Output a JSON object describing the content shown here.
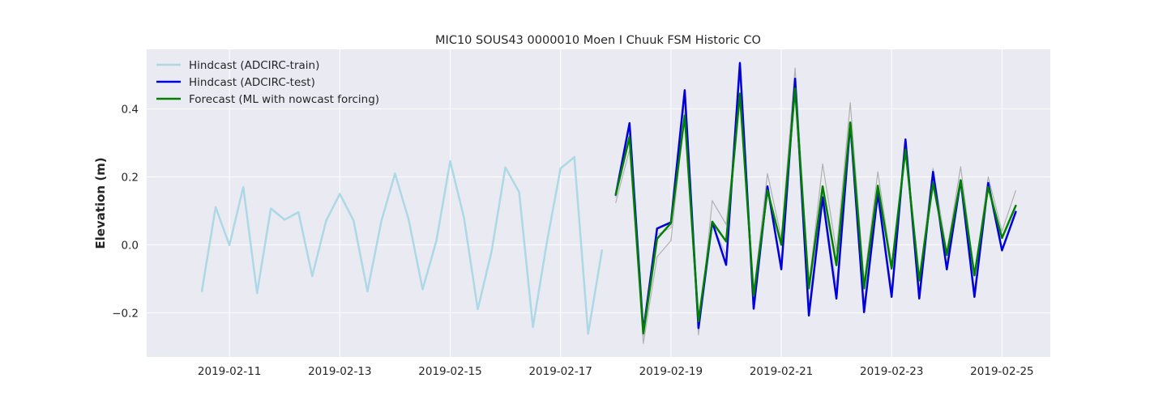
{
  "chart_data": {
    "type": "line",
    "title": "MIC10 SOUS43 0000010 Moen I Chuuk FSM Historic CO",
    "xlabel": "",
    "ylabel": "Elevation (m)",
    "x_ticks": [
      "2019-02-11",
      "2019-02-13",
      "2019-02-15",
      "2019-02-17",
      "2019-02-19",
      "2019-02-21",
      "2019-02-23",
      "2019-02-25"
    ],
    "y_ticks": [
      "−0.2",
      "0.0",
      "0.2",
      "0.4"
    ],
    "y_tick_values": [
      -0.2,
      0.0,
      0.2,
      0.4
    ],
    "xlim": [
      "2019-02-09 12:00",
      "2019-02-25 21:00"
    ],
    "ylim": [
      -0.33,
      0.575
    ],
    "grid": true,
    "legend_position": "upper left",
    "background": "#eaeaf2",
    "series": [
      {
        "name": "Hindcast (ADCIRC-train)",
        "color": "#add8e6",
        "width": 2.5,
        "x": [
          "2019-02-10 12:00",
          "2019-02-10 18:00",
          "2019-02-11 00:00",
          "2019-02-11 06:00",
          "2019-02-11 12:00",
          "2019-02-11 18:00",
          "2019-02-12 00:00",
          "2019-02-12 06:00",
          "2019-02-12 12:00",
          "2019-02-12 18:00",
          "2019-02-13 00:00",
          "2019-02-13 06:00",
          "2019-02-13 12:00",
          "2019-02-13 18:00",
          "2019-02-14 00:00",
          "2019-02-14 06:00",
          "2019-02-14 12:00",
          "2019-02-14 18:00",
          "2019-02-15 00:00",
          "2019-02-15 06:00",
          "2019-02-15 12:00",
          "2019-02-15 18:00",
          "2019-02-16 00:00",
          "2019-02-16 06:00",
          "2019-02-16 12:00",
          "2019-02-16 18:00",
          "2019-02-17 00:00",
          "2019-02-17 06:00",
          "2019-02-17 12:00",
          "2019-02-17 18:00"
        ],
        "y": [
          -0.136,
          0.111,
          -0.001,
          0.17,
          -0.142,
          0.107,
          0.074,
          0.096,
          -0.092,
          0.07,
          0.15,
          0.071,
          -0.137,
          0.068,
          0.21,
          0.073,
          -0.131,
          0.012,
          0.246,
          0.08,
          -0.19,
          -0.019,
          0.228,
          0.155,
          -0.242,
          0.006,
          0.225,
          0.258,
          -0.262,
          -0.016
        ]
      },
      {
        "name": "Hindcast (ADCIRC-test)",
        "color": "#0000dd",
        "width": 2.5,
        "x": [
          "2019-02-18 00:00",
          "2019-02-18 06:00",
          "2019-02-18 12:00",
          "2019-02-18 18:00",
          "2019-02-19 00:00",
          "2019-02-19 06:00",
          "2019-02-19 12:00",
          "2019-02-19 18:00",
          "2019-02-20 00:00",
          "2019-02-20 06:00",
          "2019-02-20 12:00",
          "2019-02-20 18:00",
          "2019-02-21 00:00",
          "2019-02-21 06:00",
          "2019-02-21 12:00",
          "2019-02-21 18:00",
          "2019-02-22 00:00",
          "2019-02-22 06:00",
          "2019-02-22 12:00",
          "2019-02-22 18:00",
          "2019-02-23 00:00",
          "2019-02-23 06:00",
          "2019-02-23 12:00",
          "2019-02-23 18:00",
          "2019-02-24 00:00",
          "2019-02-24 06:00",
          "2019-02-24 12:00",
          "2019-02-24 18:00",
          "2019-02-25 00:00",
          "2019-02-25 06:00"
        ],
        "y": [
          0.147,
          0.358,
          -0.255,
          0.048,
          0.066,
          0.455,
          -0.245,
          0.067,
          -0.059,
          0.535,
          -0.188,
          0.172,
          -0.072,
          0.489,
          -0.208,
          0.14,
          -0.158,
          0.358,
          -0.198,
          0.152,
          -0.153,
          0.31,
          -0.158,
          0.215,
          -0.072,
          0.19,
          -0.153,
          0.182,
          -0.016,
          0.097
        ]
      },
      {
        "name": "Forecast (ML with nowcast forcing)",
        "color": "#008000",
        "width": 2.5,
        "x": [
          "2019-02-18 00:00",
          "2019-02-18 06:00",
          "2019-02-18 12:00",
          "2019-02-18 18:00",
          "2019-02-19 00:00",
          "2019-02-19 06:00",
          "2019-02-19 12:00",
          "2019-02-19 18:00",
          "2019-02-20 00:00",
          "2019-02-20 06:00",
          "2019-02-20 12:00",
          "2019-02-20 18:00",
          "2019-02-21 00:00",
          "2019-02-21 06:00",
          "2019-02-21 12:00",
          "2019-02-21 18:00",
          "2019-02-22 00:00",
          "2019-02-22 06:00",
          "2019-02-22 12:00",
          "2019-02-22 18:00",
          "2019-02-23 00:00",
          "2019-02-23 06:00",
          "2019-02-23 12:00",
          "2019-02-23 18:00",
          "2019-02-24 00:00",
          "2019-02-24 06:00",
          "2019-02-24 12:00",
          "2019-02-24 18:00",
          "2019-02-25 00:00",
          "2019-02-25 06:00"
        ],
        "y": [
          0.148,
          0.317,
          -0.261,
          0.018,
          0.064,
          0.38,
          -0.225,
          0.068,
          0.01,
          0.445,
          -0.15,
          0.16,
          0.0,
          0.46,
          -0.128,
          0.172,
          -0.06,
          0.36,
          -0.128,
          0.174,
          -0.07,
          0.28,
          -0.105,
          0.182,
          -0.03,
          0.19,
          -0.09,
          0.17,
          0.02,
          0.115
        ]
      },
      {
        "name": "",
        "color": "#b0b0b0",
        "width": 1.2,
        "x": [
          "2019-02-18 00:00",
          "2019-02-18 06:00",
          "2019-02-18 12:00",
          "2019-02-18 18:00",
          "2019-02-19 00:00",
          "2019-02-19 06:00",
          "2019-02-19 12:00",
          "2019-02-19 18:00",
          "2019-02-20 00:00",
          "2019-02-20 06:00",
          "2019-02-20 12:00",
          "2019-02-20 18:00",
          "2019-02-21 00:00",
          "2019-02-21 06:00",
          "2019-02-21 12:00",
          "2019-02-21 18:00",
          "2019-02-22 00:00",
          "2019-02-22 06:00",
          "2019-02-22 12:00",
          "2019-02-22 18:00",
          "2019-02-23 00:00",
          "2019-02-23 06:00",
          "2019-02-23 12:00",
          "2019-02-23 18:00",
          "2019-02-24 00:00",
          "2019-02-24 06:00",
          "2019-02-24 12:00",
          "2019-02-24 18:00",
          "2019-02-25 00:00",
          "2019-02-25 06:00"
        ],
        "y": [
          0.124,
          0.28,
          -0.29,
          -0.035,
          0.012,
          0.39,
          -0.265,
          0.13,
          0.06,
          0.43,
          -0.14,
          0.21,
          0.02,
          0.52,
          -0.12,
          0.238,
          -0.02,
          0.418,
          -0.11,
          0.215,
          -0.06,
          0.28,
          -0.1,
          0.225,
          -0.02,
          0.23,
          -0.09,
          0.2,
          0.04,
          0.16
        ]
      },
      {
        "name": "",
        "color": "#b8b8c8",
        "width": 1.0,
        "x": [
          "2019-02-18 00:00",
          "2019-02-18 06:00",
          "2019-02-18 12:00",
          "2019-02-18 18:00",
          "2019-02-19 00:00",
          "2019-02-19 06:00",
          "2019-02-19 12:00",
          "2019-02-19 18:00",
          "2019-02-20 00:00",
          "2019-02-20 06:00",
          "2019-02-20 12:00",
          "2019-02-20 18:00",
          "2019-02-21 00:00",
          "2019-02-21 06:00",
          "2019-02-21 12:00",
          "2019-02-21 18:00",
          "2019-02-22 00:00",
          "2019-02-22 06:00",
          "2019-02-22 12:00",
          "2019-02-22 18:00",
          "2019-02-23 00:00",
          "2019-02-23 06:00",
          "2019-02-23 12:00",
          "2019-02-23 18:00",
          "2019-02-24 00:00",
          "2019-02-24 06:00",
          "2019-02-24 12:00",
          "2019-02-24 18:00",
          "2019-02-25 00:00",
          "2019-02-25 06:00"
        ],
        "y": [
          0.14,
          0.33,
          -0.27,
          0.03,
          0.05,
          0.42,
          -0.25,
          0.06,
          -0.03,
          0.5,
          -0.17,
          0.16,
          -0.05,
          0.47,
          -0.18,
          0.15,
          -0.12,
          0.35,
          -0.17,
          0.16,
          -0.13,
          0.3,
          -0.14,
          0.2,
          -0.06,
          0.19,
          -0.13,
          0.18,
          -0.02,
          0.1
        ]
      }
    ]
  }
}
